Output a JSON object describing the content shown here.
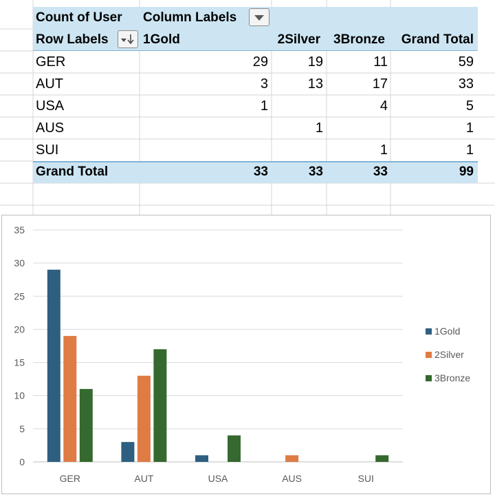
{
  "pivot": {
    "title": "Count of User",
    "column_labels": "Column Labels",
    "row_labels": "Row Labels",
    "columns": [
      "1Gold",
      "2Silver",
      "3Bronze",
      "Grand Total"
    ],
    "rows": [
      {
        "label": "GER",
        "values": [
          "29",
          "19",
          "11",
          "59"
        ]
      },
      {
        "label": "AUT",
        "values": [
          "3",
          "13",
          "17",
          "33"
        ]
      },
      {
        "label": "USA",
        "values": [
          "1",
          "",
          "4",
          "5"
        ]
      },
      {
        "label": "AUS",
        "values": [
          "",
          "1",
          "",
          "1"
        ]
      },
      {
        "label": "SUI",
        "values": [
          "",
          "",
          "1",
          "1"
        ]
      }
    ],
    "grand_total": {
      "label": "Grand Total",
      "values": [
        "33",
        "33",
        "33",
        "99"
      ]
    }
  },
  "chart_data": {
    "type": "bar",
    "categories": [
      "GER",
      "AUT",
      "USA",
      "AUS",
      "SUI"
    ],
    "series": [
      {
        "name": "1Gold",
        "values": [
          29,
          3,
          1,
          0,
          0
        ],
        "color": "#2e5f80"
      },
      {
        "name": "2Silver",
        "values": [
          19,
          13,
          0,
          1,
          0
        ],
        "color": "#df7b45"
      },
      {
        "name": "3Bronze",
        "values": [
          11,
          17,
          4,
          0,
          1
        ],
        "color": "#35692f"
      }
    ],
    "yticks": [
      0,
      5,
      10,
      15,
      20,
      25,
      30,
      35
    ],
    "ylim": [
      0,
      35
    ],
    "legend": "right",
    "title": "",
    "xlabel": "",
    "ylabel": ""
  }
}
